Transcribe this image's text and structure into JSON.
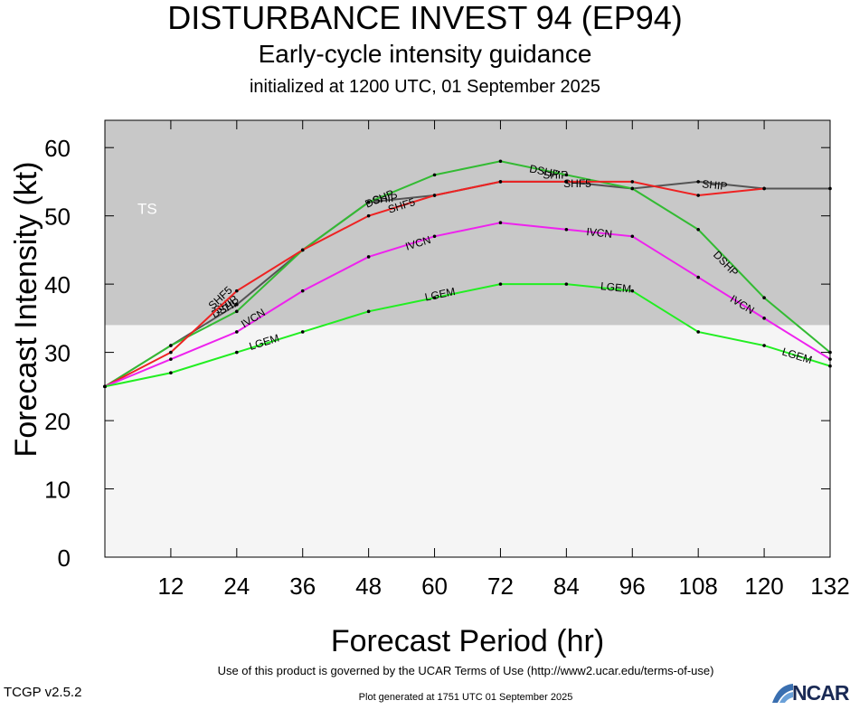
{
  "header": {
    "title": "DISTURBANCE INVEST 94 (EP94)",
    "subtitle": "Early-cycle intensity guidance",
    "init_line": "initialized at 1200 UTC, 01 September 2025"
  },
  "footer": {
    "terms": "Use of this product is governed by the UCAR Terms of Use (http://www2.ucar.edu/terms-of-use)",
    "version": "TCGP v2.5.2",
    "generated": "Plot generated at 1751 UTC   01 September 2025",
    "logo_text": "NCAR"
  },
  "chart_data": {
    "type": "line",
    "xlabel": "Forecast Period (hr)",
    "ylabel": "Forecast Intensity (kt)",
    "xlim": [
      0,
      132
    ],
    "ylim": [
      0,
      64
    ],
    "xticks": [
      12,
      24,
      36,
      48,
      60,
      72,
      84,
      96,
      108,
      120,
      132
    ],
    "yticks": [
      0,
      10,
      20,
      30,
      40,
      50,
      60
    ],
    "ts_threshold": 34,
    "ts_label": "TS",
    "colors": {
      "ts_band": "#c8c8c8",
      "background": "#f5f5f5"
    },
    "series": [
      {
        "name": "SHIP",
        "color": "#555555",
        "x": [
          0,
          12,
          24,
          36,
          48,
          60,
          72,
          84,
          96,
          108,
          120,
          132
        ],
        "y": [
          25,
          31,
          37,
          45,
          52,
          53,
          55,
          55,
          54,
          55,
          54,
          54
        ],
        "labels_at": [
          [
            22,
            37
          ],
          [
            51,
            52.5
          ],
          [
            82,
            56
          ],
          [
            111,
            54.5
          ]
        ]
      },
      {
        "name": "DSHP",
        "color": "#33bb33",
        "x": [
          0,
          12,
          24,
          36,
          48,
          60,
          72,
          84,
          96,
          108,
          120,
          132
        ],
        "y": [
          25,
          31,
          36,
          45,
          52,
          56,
          58,
          56,
          54,
          48,
          38,
          30
        ],
        "labels_at": [
          [
            22,
            36.5
          ],
          [
            50,
            52.5
          ],
          [
            80,
            56.5
          ],
          [
            113,
            43
          ]
        ]
      },
      {
        "name": "SHF5",
        "color": "#ee2222",
        "x": [
          0,
          12,
          24,
          36,
          48,
          60,
          72,
          84,
          96,
          108,
          120
        ],
        "y": [
          25,
          30,
          39,
          45,
          50,
          53,
          55,
          55,
          55,
          53,
          54
        ],
        "labels_at": [
          [
            21,
            38
          ],
          [
            54,
            51.5
          ],
          [
            86,
            54.7
          ]
        ]
      },
      {
        "name": "IVCN",
        "color": "#ee22ee",
        "x": [
          0,
          12,
          24,
          36,
          48,
          60,
          72,
          84,
          96,
          108,
          120,
          132
        ],
        "y": [
          25,
          29,
          33,
          39,
          44,
          47,
          49,
          48,
          47,
          41,
          35,
          29
        ],
        "labels_at": [
          [
            27,
            35
          ],
          [
            57,
            46
          ],
          [
            90,
            47.5
          ],
          [
            116,
            37
          ]
        ]
      },
      {
        "name": "LGEM",
        "color": "#22ee22",
        "x": [
          0,
          12,
          24,
          36,
          48,
          60,
          72,
          84,
          96,
          108,
          120,
          132
        ],
        "y": [
          25,
          27,
          30,
          33,
          36,
          38,
          40,
          40,
          39,
          33,
          31,
          28
        ],
        "labels_at": [
          [
            29,
            31.5
          ],
          [
            61,
            38.5
          ],
          [
            93,
            39.5
          ],
          [
            126,
            29.5
          ]
        ]
      }
    ]
  }
}
